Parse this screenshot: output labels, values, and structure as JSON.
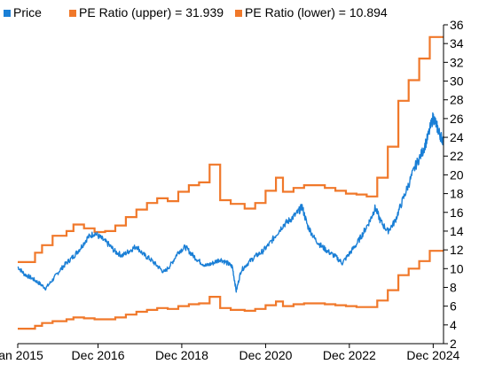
{
  "chart_data": {
    "type": "line",
    "title": "",
    "xlabel": "",
    "ylabel": "",
    "x_range": [
      "2015-01-01",
      "2025-03-01"
    ],
    "ylim": [
      2,
      36
    ],
    "y_axis_side": "right",
    "grid": false,
    "legend_placement": "top-left",
    "x_ticks": [
      {
        "date": "2015-01-01",
        "label": "Jan 2015"
      },
      {
        "date": "2016-12-01",
        "label": "Dec 2016"
      },
      {
        "date": "2018-12-01",
        "label": "Dec 2018"
      },
      {
        "date": "2020-12-01",
        "label": "Dec 2020"
      },
      {
        "date": "2022-12-01",
        "label": "Dec 2022"
      },
      {
        "date": "2024-12-01",
        "label": "Dec 2024"
      }
    ],
    "y_ticks": [
      2,
      4,
      6,
      8,
      10,
      12,
      14,
      16,
      18,
      20,
      22,
      24,
      26,
      28,
      30,
      32,
      34,
      36
    ],
    "series": [
      {
        "name": "Price",
        "legend_label": "Price",
        "color": "#1a7fd6",
        "style": "line",
        "points": [
          [
            "2015-01-01",
            10.2
          ],
          [
            "2015-03-01",
            9.4
          ],
          [
            "2015-05-01",
            9.0
          ],
          [
            "2015-07-01",
            8.5
          ],
          [
            "2015-09-01",
            7.9
          ],
          [
            "2015-11-01",
            8.8
          ],
          [
            "2016-01-01",
            9.8
          ],
          [
            "2016-03-01",
            10.6
          ],
          [
            "2016-05-01",
            11.3
          ],
          [
            "2016-07-01",
            12.2
          ],
          [
            "2016-09-01",
            13.3
          ],
          [
            "2016-11-01",
            13.8
          ],
          [
            "2017-01-01",
            13.2
          ],
          [
            "2017-03-01",
            12.6
          ],
          [
            "2017-05-01",
            11.8
          ],
          [
            "2017-07-01",
            11.4
          ],
          [
            "2017-09-01",
            11.9
          ],
          [
            "2017-11-01",
            12.4
          ],
          [
            "2018-01-01",
            11.5
          ],
          [
            "2018-03-01",
            11.0
          ],
          [
            "2018-05-01",
            10.3
          ],
          [
            "2018-07-01",
            9.6
          ],
          [
            "2018-09-01",
            10.5
          ],
          [
            "2018-11-01",
            11.8
          ],
          [
            "2019-01-01",
            12.3
          ],
          [
            "2019-03-01",
            11.5
          ],
          [
            "2019-05-01",
            10.8
          ],
          [
            "2019-07-01",
            10.3
          ],
          [
            "2019-09-01",
            10.6
          ],
          [
            "2019-11-01",
            11.0
          ],
          [
            "2020-01-01",
            10.6
          ],
          [
            "2020-02-15",
            10.2
          ],
          [
            "2020-03-20",
            7.6
          ],
          [
            "2020-05-01",
            9.8
          ],
          [
            "2020-07-01",
            10.6
          ],
          [
            "2020-09-01",
            11.3
          ],
          [
            "2020-11-01",
            11.8
          ],
          [
            "2021-01-01",
            12.6
          ],
          [
            "2021-03-01",
            13.6
          ],
          [
            "2021-05-01",
            14.6
          ],
          [
            "2021-07-01",
            15.2
          ],
          [
            "2021-09-01",
            15.9
          ],
          [
            "2021-10-15",
            16.6
          ],
          [
            "2021-12-01",
            14.6
          ],
          [
            "2022-02-01",
            13.2
          ],
          [
            "2022-04-01",
            12.4
          ],
          [
            "2022-06-01",
            11.8
          ],
          [
            "2022-08-01",
            11.3
          ],
          [
            "2022-10-01",
            10.6
          ],
          [
            "2022-12-01",
            11.6
          ],
          [
            "2023-02-01",
            12.6
          ],
          [
            "2023-04-01",
            13.8
          ],
          [
            "2023-06-01",
            15.2
          ],
          [
            "2023-07-15",
            16.5
          ],
          [
            "2023-09-01",
            15.0
          ],
          [
            "2023-11-01",
            14.0
          ],
          [
            "2024-01-01",
            15.0
          ],
          [
            "2024-03-01",
            17.0
          ],
          [
            "2024-05-01",
            19.0
          ],
          [
            "2024-07-01",
            21.0
          ],
          [
            "2024-09-01",
            22.5
          ],
          [
            "2024-10-15",
            24.0
          ],
          [
            "2024-12-01",
            26.2
          ],
          [
            "2025-01-01",
            25.2
          ],
          [
            "2025-02-01",
            24.2
          ],
          [
            "2025-02-28",
            23.6
          ]
        ]
      },
      {
        "name": "PE Ratio (upper)",
        "legend_label": "PE Ratio (upper) = 31.939",
        "color": "#f0782a",
        "style": "step",
        "points": [
          [
            "2015-01-01",
            10.7
          ],
          [
            "2015-06-01",
            11.7
          ],
          [
            "2015-08-01",
            12.5
          ],
          [
            "2015-11-01",
            13.5
          ],
          [
            "2016-03-01",
            14.0
          ],
          [
            "2016-05-01",
            14.7
          ],
          [
            "2016-08-01",
            14.3
          ],
          [
            "2016-11-01",
            13.9
          ],
          [
            "2017-02-01",
            14.0
          ],
          [
            "2017-05-01",
            14.6
          ],
          [
            "2017-08-01",
            15.5
          ],
          [
            "2017-11-01",
            16.3
          ],
          [
            "2018-02-01",
            17.0
          ],
          [
            "2018-05-01",
            17.5
          ],
          [
            "2018-08-01",
            17.2
          ],
          [
            "2018-11-01",
            18.2
          ],
          [
            "2019-02-01",
            18.9
          ],
          [
            "2019-05-01",
            19.2
          ],
          [
            "2019-08-01",
            21.1
          ],
          [
            "2019-11-01",
            17.3
          ],
          [
            "2020-02-01",
            16.9
          ],
          [
            "2020-06-01",
            16.4
          ],
          [
            "2020-09-01",
            17.0
          ],
          [
            "2020-12-01",
            18.3
          ],
          [
            "2021-03-01",
            19.7
          ],
          [
            "2021-05-01",
            18.2
          ],
          [
            "2021-08-01",
            18.6
          ],
          [
            "2021-11-01",
            18.9
          ],
          [
            "2022-02-01",
            18.9
          ],
          [
            "2022-05-01",
            18.6
          ],
          [
            "2022-08-01",
            18.3
          ],
          [
            "2022-11-01",
            18.0
          ],
          [
            "2023-02-01",
            17.9
          ],
          [
            "2023-05-01",
            17.7
          ],
          [
            "2023-08-01",
            19.7
          ],
          [
            "2023-11-01",
            23.0
          ],
          [
            "2024-02-01",
            27.9
          ],
          [
            "2024-05-01",
            30.1
          ],
          [
            "2024-08-01",
            32.4
          ],
          [
            "2024-11-01",
            34.7
          ],
          [
            "2025-02-28",
            34.7
          ]
        ]
      },
      {
        "name": "PE Ratio (lower)",
        "legend_label": "PE Ratio (lower) = 10.894",
        "color": "#f0782a",
        "style": "step",
        "points": [
          [
            "2015-01-01",
            3.6
          ],
          [
            "2015-06-01",
            3.9
          ],
          [
            "2015-08-01",
            4.2
          ],
          [
            "2015-11-01",
            4.4
          ],
          [
            "2016-03-01",
            4.6
          ],
          [
            "2016-05-01",
            4.8
          ],
          [
            "2016-08-01",
            4.7
          ],
          [
            "2016-11-01",
            4.6
          ],
          [
            "2017-02-01",
            4.6
          ],
          [
            "2017-05-01",
            4.8
          ],
          [
            "2017-08-01",
            5.1
          ],
          [
            "2017-11-01",
            5.4
          ],
          [
            "2018-02-01",
            5.6
          ],
          [
            "2018-05-01",
            5.8
          ],
          [
            "2018-08-01",
            5.7
          ],
          [
            "2018-11-01",
            6.0
          ],
          [
            "2019-02-01",
            6.2
          ],
          [
            "2019-05-01",
            6.3
          ],
          [
            "2019-08-01",
            7.0
          ],
          [
            "2019-11-01",
            5.8
          ],
          [
            "2020-02-01",
            5.6
          ],
          [
            "2020-06-01",
            5.5
          ],
          [
            "2020-09-01",
            5.7
          ],
          [
            "2020-12-01",
            6.1
          ],
          [
            "2021-03-01",
            6.5
          ],
          [
            "2021-05-01",
            6.0
          ],
          [
            "2021-08-01",
            6.2
          ],
          [
            "2021-11-01",
            6.3
          ],
          [
            "2022-02-01",
            6.3
          ],
          [
            "2022-05-01",
            6.2
          ],
          [
            "2022-08-01",
            6.1
          ],
          [
            "2022-11-01",
            6.0
          ],
          [
            "2023-02-01",
            5.9
          ],
          [
            "2023-05-01",
            5.9
          ],
          [
            "2023-08-01",
            6.6
          ],
          [
            "2023-11-01",
            7.7
          ],
          [
            "2024-02-01",
            9.3
          ],
          [
            "2024-05-01",
            10.0
          ],
          [
            "2024-08-01",
            10.8
          ],
          [
            "2024-11-01",
            11.9
          ],
          [
            "2025-02-28",
            11.9
          ]
        ]
      }
    ]
  }
}
